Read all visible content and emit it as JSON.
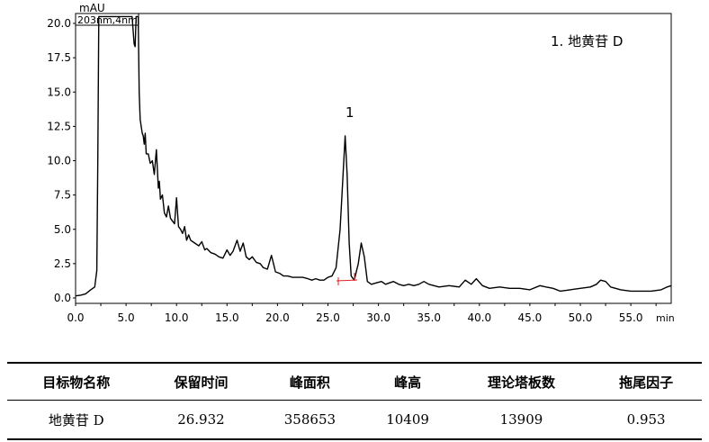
{
  "chart_data": {
    "type": "line",
    "ylabel": "mAU",
    "xlabel": "min",
    "xlim": [
      0.0,
      59.0
    ],
    "ylim": [
      0.0,
      20.5
    ],
    "x_ticks": [
      "0.0",
      "2.5",
      "5.0",
      "7.5",
      "10.0",
      "12.5",
      "15.0",
      "17.5",
      "20.0",
      "22.5",
      "25.0",
      "27.5",
      "30.0",
      "32.5",
      "35.0",
      "37.5",
      "40.0",
      "42.5",
      "45.0",
      "47.5",
      "50.0",
      "52.5",
      "55.0",
      "57.5"
    ],
    "x_tick_labels": [
      "0.0",
      "5.0",
      "10.0",
      "15.0",
      "20.0",
      "25.0",
      "30.0",
      "35.0",
      "40.0",
      "45.0",
      "50.0",
      "55.0"
    ],
    "y_ticks": [
      "0.0",
      "2.5",
      "5.0",
      "7.5",
      "10.0",
      "12.5",
      "15.0",
      "17.5",
      "20.0"
    ],
    "series_label": "203nm,4nm",
    "legend_text": "1.  地黄苷 D",
    "peak_label": "1",
    "series": [
      {
        "x": [
          0.0,
          0.5,
          1.0,
          1.5,
          1.9,
          2.1,
          2.2,
          2.3,
          4.8,
          5.6,
          5.8,
          5.9,
          6.0,
          6.1,
          6.2,
          6.3,
          6.4,
          6.6,
          6.7,
          6.8,
          6.9,
          7.0,
          7.2,
          7.4,
          7.6,
          7.8,
          8.0,
          8.2,
          8.3,
          8.4,
          8.6,
          8.8,
          9.0,
          9.2,
          9.4,
          9.6,
          9.8,
          10.0,
          10.2,
          10.4,
          10.6,
          10.8,
          11.0,
          11.2,
          11.4,
          11.8,
          12.2,
          12.5,
          12.8,
          13.0,
          13.4,
          13.8,
          14.2,
          14.6,
          15.0,
          15.3,
          15.6,
          16.0,
          16.3,
          16.6,
          16.9,
          17.2,
          17.5,
          17.9,
          18.3,
          18.6,
          19.0,
          19.4,
          19.8,
          20.2,
          20.6,
          21.0,
          21.5,
          22.0,
          22.5,
          23.0,
          23.4,
          23.8,
          24.2,
          24.6,
          25.0,
          25.4,
          25.8,
          26.2,
          26.5,
          26.7,
          26.9,
          27.1,
          27.3,
          27.6,
          28.0,
          28.3,
          28.6,
          28.9,
          29.3,
          29.8,
          30.3,
          30.7,
          31.1,
          31.5,
          32.0,
          32.5,
          33.0,
          33.5,
          34.0,
          34.5,
          35.0,
          35.5,
          36.0,
          37.0,
          38.0,
          38.6,
          39.2,
          39.7,
          40.3,
          41.0,
          42.0,
          43.0,
          44.0,
          45.0,
          46.0,
          46.6,
          47.3,
          48.0,
          49.0,
          50.0,
          51.0,
          51.6,
          52.0,
          52.5,
          53.0,
          54.0,
          55.0,
          56.0,
          57.0,
          58.0,
          58.6,
          59.0
        ],
        "values": [
          0.15,
          0.2,
          0.3,
          0.6,
          0.8,
          2.0,
          10.0,
          20.5,
          20.5,
          20.5,
          18.5,
          18.3,
          20.5,
          20.5,
          20.5,
          15.0,
          13.0,
          12.0,
          11.8,
          11.2,
          12.0,
          10.5,
          10.5,
          9.8,
          10.0,
          9.0,
          10.8,
          8.0,
          8.5,
          7.2,
          7.5,
          6.2,
          5.9,
          6.7,
          5.8,
          5.6,
          5.4,
          7.3,
          5.2,
          5.0,
          4.7,
          5.2,
          4.2,
          4.6,
          4.2,
          4.0,
          3.8,
          4.1,
          3.5,
          3.6,
          3.3,
          3.2,
          3.0,
          2.9,
          3.5,
          3.1,
          3.4,
          4.2,
          3.4,
          4.0,
          3.0,
          2.8,
          3.0,
          2.6,
          2.5,
          2.2,
          2.1,
          3.1,
          1.9,
          1.8,
          1.6,
          1.6,
          1.5,
          1.5,
          1.5,
          1.4,
          1.3,
          1.4,
          1.3,
          1.3,
          1.5,
          1.6,
          2.2,
          5.0,
          9.0,
          11.8,
          9.0,
          4.0,
          1.6,
          1.3,
          2.5,
          4.0,
          3.0,
          1.2,
          1.0,
          1.1,
          1.2,
          1.0,
          1.1,
          1.2,
          1.0,
          0.9,
          1.0,
          0.9,
          1.0,
          1.2,
          1.0,
          0.9,
          0.8,
          0.9,
          0.8,
          1.3,
          1.0,
          1.4,
          0.9,
          0.7,
          0.8,
          0.7,
          0.7,
          0.6,
          0.9,
          0.8,
          0.7,
          0.5,
          0.6,
          0.7,
          0.8,
          1.0,
          1.3,
          1.2,
          0.8,
          0.6,
          0.5,
          0.5,
          0.5,
          0.6,
          0.8,
          0.9
        ]
      }
    ]
  },
  "table": {
    "headers": [
      "目标物名称",
      "保留时间",
      "峰面积",
      "峰高",
      "理论塔板数",
      "拖尾因子"
    ],
    "row": [
      "地黄苷 D",
      "26.932",
      "358653",
      "10409",
      "13909",
      "0.953"
    ]
  },
  "colors": {
    "line": "#000000",
    "integration": "#e02020",
    "frame": "#000000"
  }
}
